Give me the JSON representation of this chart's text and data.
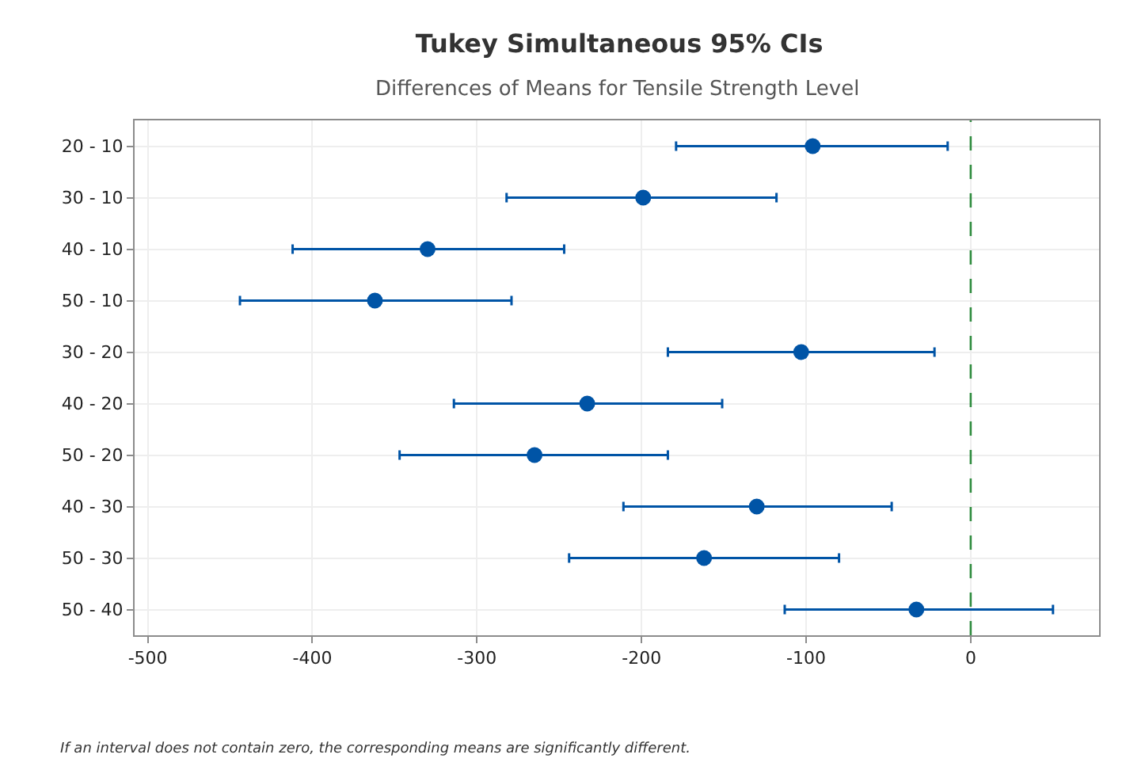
{
  "chart_data": {
    "type": "scatter",
    "orientation": "horizontal",
    "title": "Tukey Simultaneous 95% CIs",
    "subtitle": "Differences of Means for Tensile Strength Level",
    "categories": [
      "20 - 10",
      "30 - 10",
      "40 - 10",
      "50 - 10",
      "30 - 20",
      "40 - 20",
      "50 - 20",
      "40 - 30",
      "50 - 30",
      "50 - 40"
    ],
    "values": [
      -96,
      -199,
      -330,
      -362,
      -103,
      -233,
      -265,
      -130,
      -162,
      -33
    ],
    "errors": [
      [
        -179,
        -14
      ],
      [
        -282,
        -118
      ],
      [
        -412,
        -247
      ],
      [
        -444,
        -279
      ],
      [
        -184,
        -22
      ],
      [
        -314,
        -151
      ],
      [
        -347,
        -184
      ],
      [
        -211,
        -48
      ],
      [
        -244,
        -80
      ],
      [
        -113,
        50
      ]
    ],
    "color": "#0054a6",
    "marker": "circle",
    "xlim": [
      -508,
      78
    ],
    "xticks": [
      -500,
      -400,
      -300,
      -200,
      -100,
      0
    ],
    "ref_lines": [
      {
        "axis": "x",
        "value": 0,
        "color": "#2e8b3e",
        "line_style": "dashed"
      }
    ],
    "grid": true,
    "annotations": [
      "If an interval does not contain zero, the corresponding means are significantly different."
    ]
  }
}
